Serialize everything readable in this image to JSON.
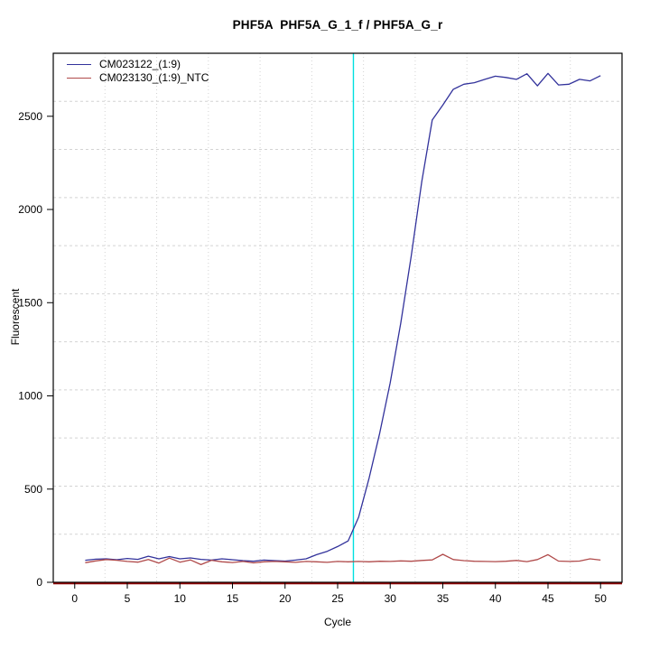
{
  "title": "PHF5A  PHF5A_G_1_f / PHF5A_G_r",
  "chart_data": {
    "type": "line",
    "title": "PHF5A  PHF5A_G_1_f / PHF5A_G_r",
    "xlabel": "Cycle",
    "ylabel": "Fluorescent",
    "xlim": [
      -2.04,
      52.04
    ],
    "ylim": [
      0,
      2838
    ],
    "xticks": [
      0,
      5,
      10,
      15,
      20,
      25,
      30,
      35,
      40,
      45,
      50
    ],
    "yticks": [
      0,
      500,
      1000,
      1500,
      2000,
      2500
    ],
    "grid": {
      "nx": 11,
      "ny": 11,
      "color": "#D3D3D3",
      "style": "dotted"
    },
    "legend_position": "top-left",
    "x": [
      1,
      2,
      3,
      4,
      5,
      6,
      7,
      8,
      9,
      10,
      11,
      12,
      13,
      14,
      15,
      16,
      17,
      18,
      19,
      20,
      21,
      22,
      23,
      24,
      25,
      26,
      27,
      28,
      29,
      30,
      31,
      32,
      33,
      34,
      35,
      36,
      37,
      38,
      39,
      40,
      41,
      42,
      43,
      44,
      45,
      46,
      47,
      48,
      49,
      50
    ],
    "series": [
      {
        "name": "CM023122_(1:9)",
        "color": "#32329B",
        "values": [
          118,
          124,
          126,
          121,
          128,
          123,
          140,
          126,
          138,
          126,
          131,
          123,
          119,
          126,
          121,
          116,
          113,
          119,
          116,
          114,
          119,
          126,
          148,
          166,
          192,
          222,
          350,
          560,
          800,
          1070,
          1390,
          1750,
          2150,
          2480,
          2560,
          2645,
          2672,
          2680,
          2698,
          2715,
          2708,
          2698,
          2728,
          2663,
          2730,
          2668,
          2672,
          2698,
          2690,
          2718
        ]
      },
      {
        "name": "CM023130_(1:9)_NTC",
        "color": "#B04A4A",
        "values": [
          105,
          115,
          122,
          118,
          112,
          108,
          122,
          103,
          130,
          108,
          120,
          95,
          118,
          110,
          106,
          112,
          104,
          110,
          112,
          110,
          107,
          112,
          110,
          107,
          112,
          110,
          112,
          110,
          113,
          112,
          115,
          113,
          117,
          120,
          150,
          122,
          116,
          113,
          112,
          111,
          113,
          117,
          111,
          122,
          148,
          114,
          112,
          114,
          126,
          119
        ]
      }
    ],
    "threshold_line": {
      "orientation": "vertical",
      "x": 26.5,
      "color": "#00E0E0"
    },
    "zero_line": {
      "y": 0,
      "color": "#8B0000"
    },
    "axis_color": "#000000"
  }
}
